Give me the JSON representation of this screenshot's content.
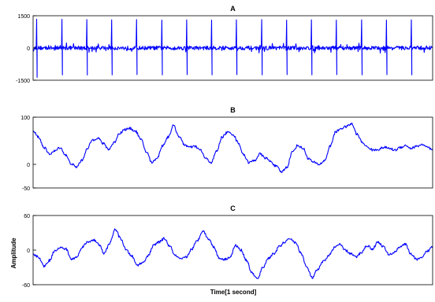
{
  "figure": {
    "ylabel": "Amplitude",
    "xlabel": "Time[1 second]",
    "line_color": "#0000ff",
    "axis_color": "#000000"
  },
  "chart_data": [
    {
      "type": "line",
      "title": "A",
      "ylim": [
        -1500,
        1500
      ],
      "yticks": [
        "1500",
        "0",
        "-1500"
      ],
      "ytick_values": [
        1500,
        0,
        -1500
      ],
      "grid": false,
      "pattern": "spike-train",
      "series": [
        {
          "values": [
            1340,
            -1370,
            1330,
            -1250,
            1320,
            -1260,
            1310,
            -1250,
            1320,
            -1240,
            1300,
            -1250,
            1310,
            -1240,
            1300,
            -1250,
            1310,
            -1240,
            1320,
            -1250,
            1300,
            -1240,
            1310,
            -1250,
            1300,
            -1240,
            1310,
            -1250,
            1300,
            -1240,
            1310,
            -1250
          ]
        }
      ]
    },
    {
      "type": "line",
      "title": "B",
      "ylim": [
        -50,
        100
      ],
      "yticks": [
        "100",
        "0",
        "-50"
      ],
      "ytick_values": [
        100,
        0,
        -50
      ],
      "grid": false,
      "pattern": "smooth",
      "series": [
        {
          "values": [
            70,
            58,
            36,
            22,
            28,
            36,
            20,
            2,
            -6,
            8,
            32,
            52,
            56,
            44,
            32,
            46,
            66,
            74,
            76,
            70,
            52,
            26,
            4,
            14,
            40,
            58,
            82,
            60,
            42,
            36,
            38,
            30,
            12,
            4,
            28,
            58,
            68,
            64,
            46,
            20,
            4,
            8,
            22,
            14,
            6,
            -4,
            -16,
            -6,
            26,
            40,
            34,
            12,
            4,
            0,
            8,
            38,
            68,
            76,
            80,
            86,
            64,
            46,
            36,
            30,
            32,
            36,
            34,
            30,
            36,
            40,
            34,
            38,
            42,
            36,
            30
          ]
        }
      ]
    },
    {
      "type": "line",
      "title": "C",
      "ylim": [
        -60,
        60
      ],
      "yticks": [
        "60",
        "0",
        "-60"
      ],
      "ytick_values": [
        60,
        0,
        -60
      ],
      "grid": false,
      "pattern": "smooth",
      "series": [
        {
          "values": [
            -8,
            -12,
            -28,
            -18,
            0,
            4,
            2,
            -16,
            -12,
            6,
            14,
            18,
            10,
            -6,
            12,
            36,
            20,
            0,
            -10,
            -26,
            -22,
            -10,
            8,
            14,
            20,
            6,
            -10,
            -16,
            -12,
            2,
            16,
            34,
            20,
            6,
            -14,
            -16,
            -12,
            8,
            0,
            -18,
            -40,
            -50,
            -30,
            -14,
            -6,
            6,
            14,
            20,
            12,
            -6,
            -30,
            -48,
            -34,
            -20,
            -10,
            4,
            10,
            0,
            -6,
            -12,
            -4,
            8,
            2,
            14,
            6,
            -8,
            -4,
            6,
            10,
            -6,
            -16,
            -14,
            -2,
            6
          ]
        }
      ]
    }
  ]
}
